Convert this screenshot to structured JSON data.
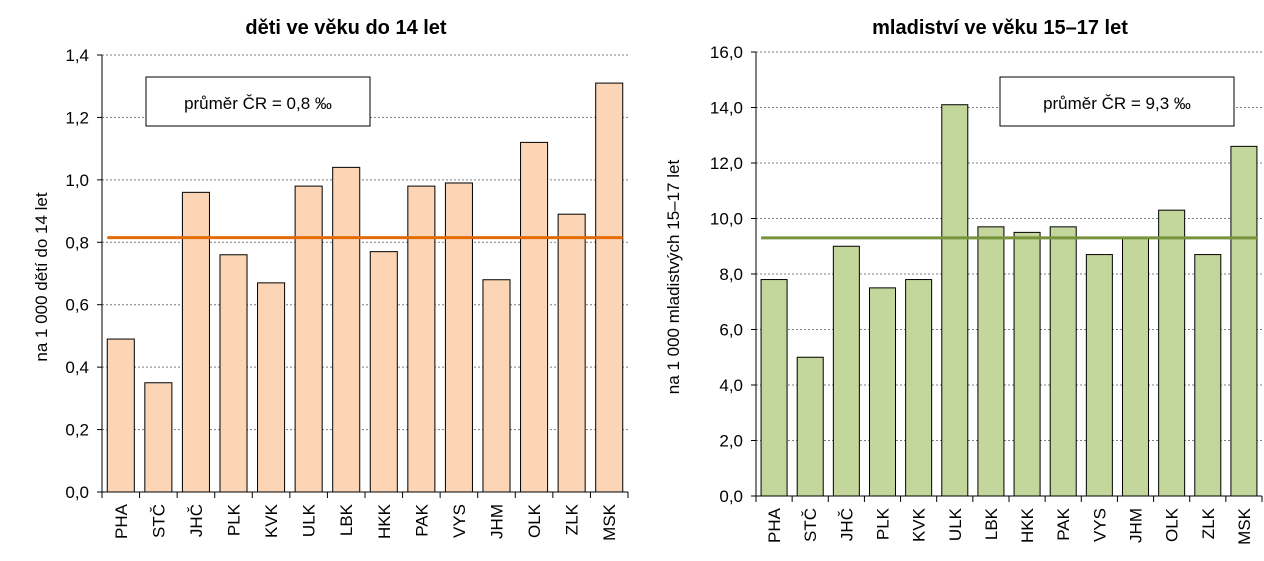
{
  "chart_data": [
    {
      "type": "bar",
      "title": "děti ve věku do 14 let",
      "xlabel": "",
      "ylabel": "na 1 000 dětí do 14 let",
      "categories": [
        "PHA",
        "STČ",
        "JHČ",
        "PLK",
        "KVK",
        "ULK",
        "LBK",
        "HKK",
        "PAK",
        "VYS",
        "JHM",
        "OLK",
        "ZLK",
        "MSK"
      ],
      "values": [
        0.49,
        0.35,
        0.96,
        0.76,
        0.67,
        0.98,
        1.04,
        0.77,
        0.98,
        0.99,
        0.68,
        1.12,
        0.89,
        1.31
      ],
      "ylim": [
        0,
        1.4
      ],
      "yticks": [
        "0,0",
        "0,2",
        "0,4",
        "0,6",
        "0,8",
        "1,0",
        "1,2",
        "1,4"
      ],
      "ytick_step": 0.2,
      "average_value": 0.815,
      "average_label": "průměr ČR = 0,8 ‰",
      "grid": true,
      "bar_color": "#fbd5b5",
      "line_color": "#e36c0a"
    },
    {
      "type": "bar",
      "title": "mladiství ve věku 15–17 let",
      "xlabel": "",
      "ylabel": "na 1 000 mladistvých 15–17 let",
      "categories": [
        "PHA",
        "STČ",
        "JHČ",
        "PLK",
        "KVK",
        "ULK",
        "LBK",
        "HKK",
        "PAK",
        "VYS",
        "JHM",
        "OLK",
        "ZLK",
        "MSK"
      ],
      "values": [
        7.8,
        5.0,
        9.0,
        7.5,
        7.8,
        14.1,
        9.7,
        9.5,
        9.7,
        8.7,
        9.3,
        10.3,
        8.7,
        12.6
      ],
      "ylim": [
        0,
        16
      ],
      "yticks": [
        "0,0",
        "2,0",
        "4,0",
        "6,0",
        "8,0",
        "10,0",
        "12,0",
        "14,0",
        "16,0"
      ],
      "ytick_step": 2,
      "average_value": 9.3,
      "average_label": "průměr ČR = 9,3 ‰",
      "grid": true,
      "bar_color": "#c3d69b",
      "line_color": "#77933c"
    }
  ]
}
